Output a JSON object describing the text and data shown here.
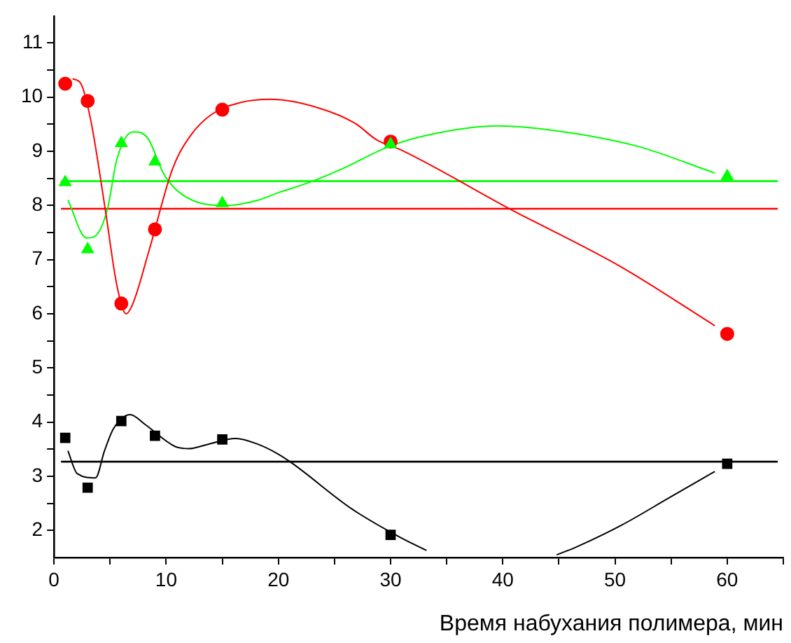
{
  "chart_data": {
    "type": "scatter",
    "xlabel": "Время набухания полимера, мин",
    "xlim": [
      0,
      65
    ],
    "ylim": [
      1.5,
      11.5
    ],
    "xticks": [
      0,
      {
        "value": 5,
        "label": null
      },
      10,
      {
        "value": 15,
        "label": null
      },
      20,
      {
        "value": 25,
        "label": null
      },
      30,
      {
        "value": 35,
        "label": null
      },
      40,
      {
        "value": 45,
        "label": null
      },
      50,
      {
        "value": 55,
        "label": null
      },
      60,
      {
        "value": 65,
        "label": null
      }
    ],
    "yticks": [
      2,
      {
        "value": 2.5,
        "label": null
      },
      3,
      {
        "value": 3.5,
        "label": null
      },
      4,
      {
        "value": 4.5,
        "label": null
      },
      5,
      {
        "value": 5.5,
        "label": null
      },
      6,
      {
        "value": 6.5,
        "label": null
      },
      7,
      {
        "value": 7.5,
        "label": null
      },
      8,
      {
        "value": 8.5,
        "label": null
      },
      9,
      {
        "value": 9.5,
        "label": null
      },
      10,
      {
        "value": 10.5,
        "label": null
      },
      11
    ],
    "grid": false,
    "legend": false,
    "series": [
      {
        "type": "scatter",
        "marker": "triangle",
        "color": "#00ff00",
        "x": [
          1,
          3,
          6,
          9,
          15,
          30,
          60
        ],
        "values": [
          8.43,
          7.19,
          9.15,
          8.81,
          8.04,
          9.13,
          8.54
        ]
      },
      {
        "type": "scatter",
        "marker": "circle",
        "color": "#ff0000",
        "x": [
          1,
          3,
          6,
          9,
          15,
          30,
          60
        ],
        "values": [
          10.25,
          9.93,
          6.19,
          7.56,
          9.77,
          9.18,
          5.63
        ]
      },
      {
        "type": "scatter",
        "marker": "square",
        "color": "#000000",
        "x": [
          1,
          3,
          6,
          9,
          15,
          30,
          60
        ],
        "values": [
          3.71,
          2.79,
          4.02,
          3.75,
          3.68,
          1.92,
          3.23
        ]
      },
      {
        "type": "line",
        "marker": "none",
        "line_style": "solid",
        "color": "#ff0000",
        "x": [
          1.66,
          2.4,
          3.3,
          4.56,
          5.6,
          6.43,
          7.05,
          8.5,
          10.57,
          12.2,
          14.1,
          16.6,
          19.3,
          23.6,
          26.9,
          28.7,
          31.1,
          40.6,
          50.6,
          58.9
        ],
        "values": [
          10.34,
          10.25,
          9.55,
          7.94,
          6.53,
          6.0,
          6.2,
          7.19,
          8.68,
          9.3,
          9.69,
          9.9,
          9.96,
          9.8,
          9.51,
          9.22,
          9.01,
          7.94,
          6.86,
          5.78
        ]
      },
      {
        "type": "line",
        "marker": "none",
        "line_style": "solid",
        "color": "#00ff00",
        "x": [
          1.24,
          2.9,
          3.7,
          4.77,
          5.6,
          7.05,
          8.3,
          9.74,
          10.8,
          12.8,
          15.3,
          18.2,
          19.9,
          22.8,
          25.7,
          30,
          34,
          39.4,
          44.4,
          51.9,
          58.9
        ],
        "values": [
          8.1,
          7.4,
          7.44,
          7.94,
          8.85,
          9.36,
          9.26,
          8.6,
          8.31,
          8.06,
          8.0,
          8.1,
          8.23,
          8.43,
          8.68,
          9.1,
          9.33,
          9.47,
          9.39,
          9.1,
          8.6
        ]
      },
      {
        "type": "line",
        "marker": "none",
        "line_style": "solid",
        "color": "#000000",
        "x": [
          1.24,
          2.07,
          3.7,
          4.5,
          5.3,
          6.8,
          8.1,
          10.8,
          12,
          13.7,
          16.2,
          18.2,
          19.9,
          21.1,
          26.6,
          30.7,
          33.2,
          39,
          44.8,
          46.5,
          50.6,
          54.8,
          58.9
        ],
        "values": [
          3.47,
          3.05,
          2.97,
          3.47,
          3.88,
          4.14,
          3.96,
          3.55,
          3.51,
          3.59,
          3.7,
          3.59,
          3.42,
          3.26,
          2.39,
          1.89,
          1.63,
          null,
          1.55,
          1.69,
          2.1,
          2.6,
          3.09
        ]
      }
    ],
    "ref_lines": [
      {
        "axis": "y",
        "value": 7.94,
        "color": "#ff0000"
      },
      {
        "axis": "y",
        "value": 8.45,
        "color": "#00ff00"
      },
      {
        "axis": "y",
        "value": 3.27,
        "color": "#000000"
      }
    ]
  }
}
